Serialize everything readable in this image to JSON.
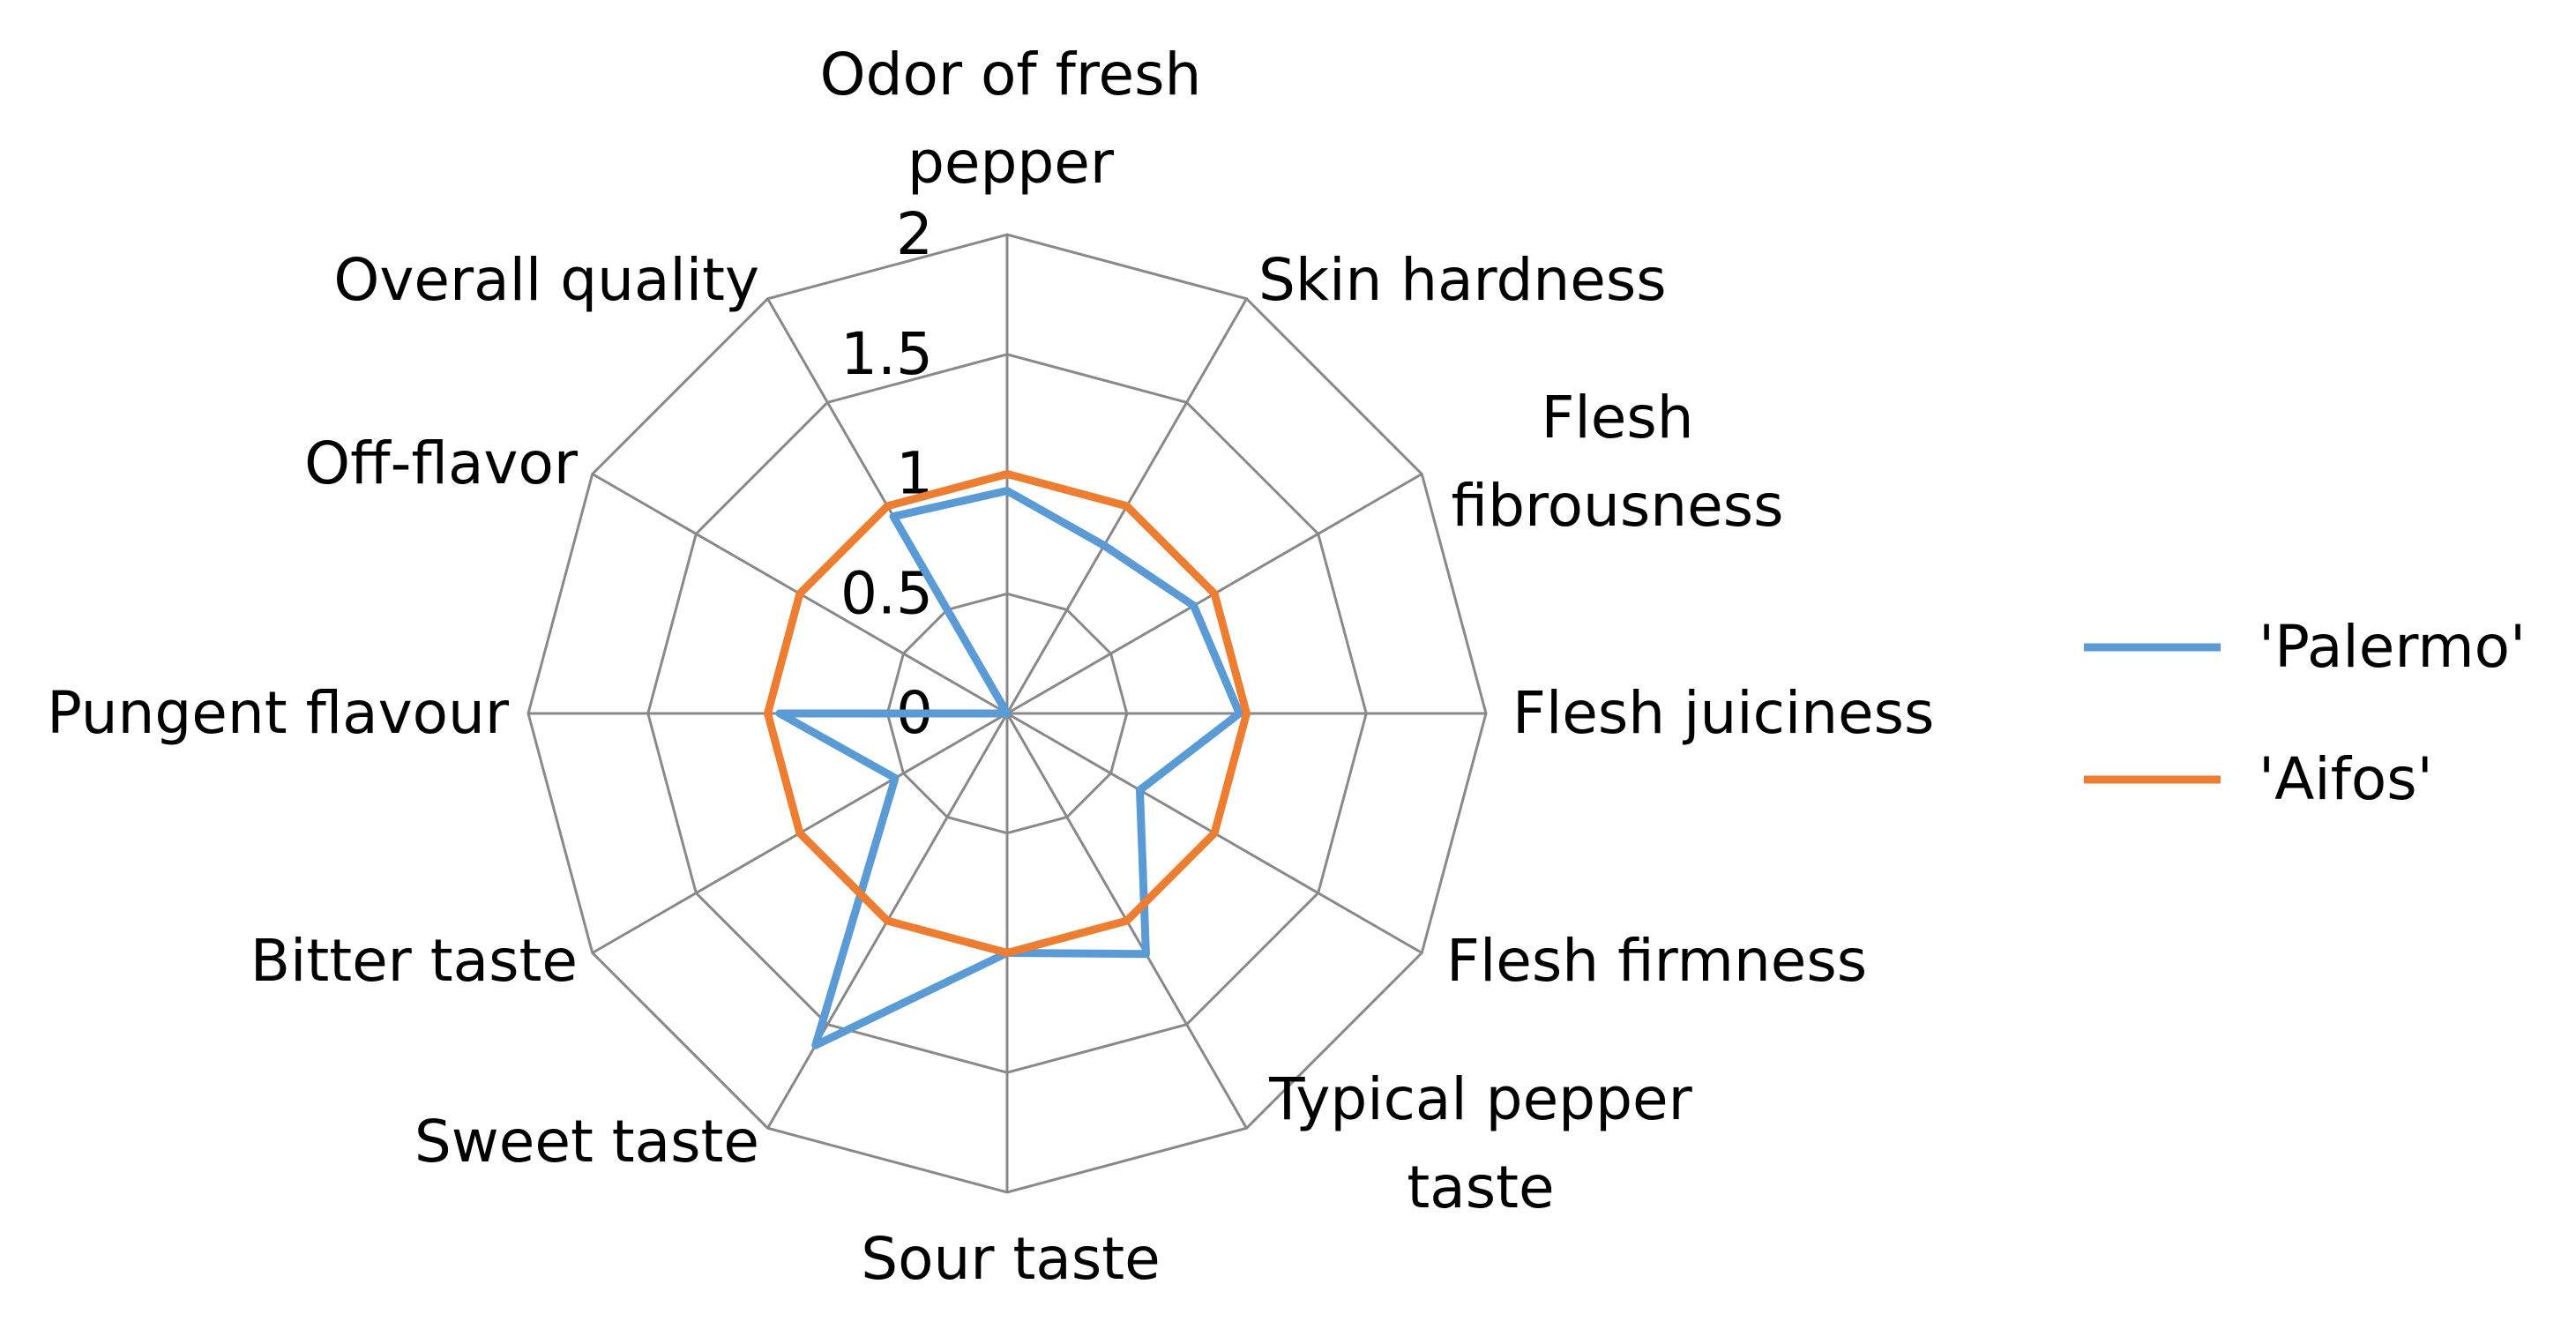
{
  "chart_data": {
    "type": "radar",
    "categories": [
      "Odor of fresh pepper",
      "Skin hardness",
      "Flesh fibrousness",
      "Flesh juiciness",
      "Flesh firmness",
      "Typical pepper taste",
      "Sour taste",
      "Sweet taste",
      "Bitter taste",
      "Pungent flavour",
      "Off-flavor",
      "Overall quality"
    ],
    "series": [
      {
        "name": "'Palermo'",
        "color": "#5b9bd5",
        "values": [
          0.93,
          0.81,
          0.9,
          0.97,
          0.64,
          1.16,
          1.0,
          1.6,
          0.54,
          0.95,
          0,
          0.95
        ]
      },
      {
        "name": "'Aifos'",
        "color": "#ed7d31",
        "values": [
          1.0,
          1.0,
          1.0,
          1.0,
          1.0,
          1.0,
          1.0,
          1.0,
          1.0,
          1.0,
          1.0,
          1.0
        ]
      }
    ],
    "rlim": [
      0,
      2
    ],
    "rticks": [
      0,
      0.5,
      1,
      1.5,
      2
    ],
    "grid": true,
    "legend": "right"
  }
}
